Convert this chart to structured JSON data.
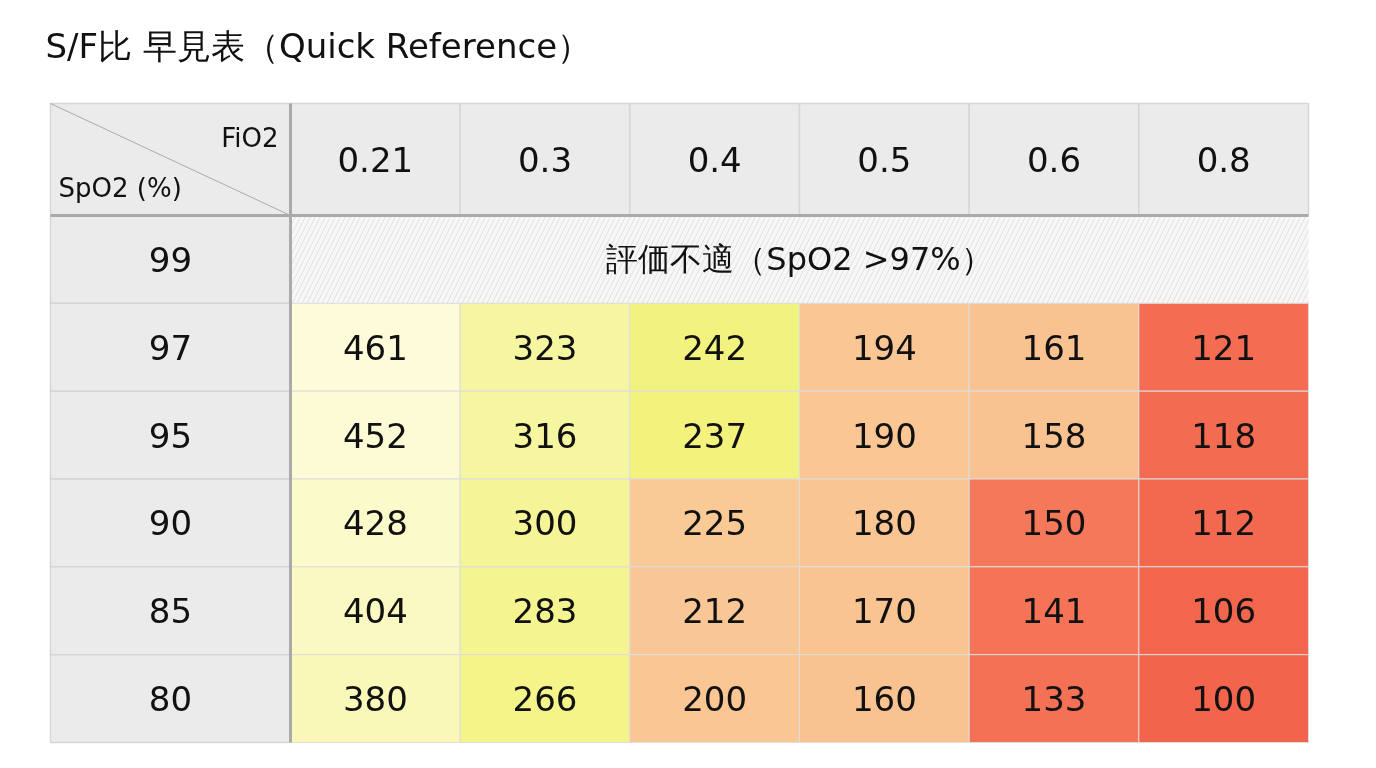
{
  "chart_data": {
    "type": "heatmap",
    "title": "S/F比 早見表（Quick Reference）",
    "xlabel": "FiO2",
    "ylabel": "SpO2 (%)",
    "categories": [
      "0.21",
      "0.3",
      "0.4",
      "0.5",
      "0.6",
      "0.8"
    ],
    "y_categories": [
      "99",
      "97",
      "95",
      "90",
      "85",
      "80"
    ],
    "cells": [
      [
        null,
        null,
        null,
        null,
        null,
        null
      ],
      [
        461,
        323,
        242,
        194,
        161,
        121
      ],
      [
        452,
        316,
        237,
        190,
        158,
        118
      ],
      [
        428,
        300,
        225,
        180,
        150,
        112
      ],
      [
        404,
        283,
        212,
        170,
        141,
        106
      ],
      [
        380,
        266,
        200,
        160,
        133,
        100
      ]
    ],
    "bands": [
      {
        "axis": "y",
        "from": "99",
        "to": "99",
        "label": "評価不適（SpO2 >97%）",
        "color": "#f7f7f7"
      }
    ],
    "data_labels": true
  }
}
